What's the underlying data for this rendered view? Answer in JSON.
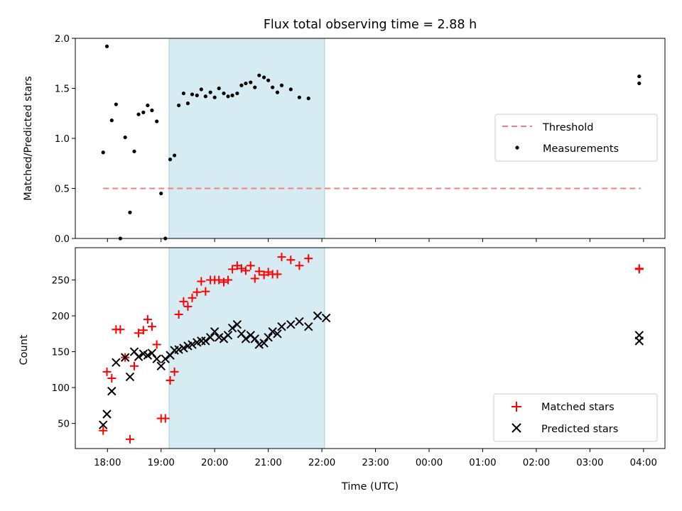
{
  "chart_data": [
    {
      "type": "scatter",
      "title": "Flux total observing time = 2.88 h",
      "xlabel": "",
      "ylabel": "Matched/Predicted stars",
      "x_unit": "hours after 18:00 UTC",
      "xlim": [
        -0.6,
        10.4
      ],
      "ylim": [
        0,
        2.0
      ],
      "yticks": [
        "0.0",
        "0.5",
        "1.0",
        "1.5",
        "2.0"
      ],
      "shaded_interval": [
        19.15,
        22.05
      ],
      "legend": {
        "placement": "center-right",
        "entries": [
          "Threshold",
          "Measurements"
        ]
      },
      "threshold": {
        "name": "Threshold",
        "value": 0.5,
        "x_range": [
          17.92,
          27.95
        ],
        "color": "#f08080"
      },
      "series": [
        {
          "name": "Measurements",
          "color": "#000000",
          "x": [
            17.92,
            17.99,
            18.08,
            18.16,
            18.24,
            18.33,
            18.42,
            18.5,
            18.58,
            18.67,
            18.75,
            18.83,
            18.92,
            19.0,
            19.08,
            19.17,
            19.25,
            19.33,
            19.42,
            19.5,
            19.58,
            19.67,
            19.75,
            19.83,
            19.92,
            20.0,
            20.08,
            20.17,
            20.25,
            20.33,
            20.42,
            20.5,
            20.58,
            20.67,
            20.75,
            20.83,
            20.92,
            21.0,
            21.08,
            21.17,
            21.25,
            21.42,
            21.58,
            21.75,
            27.92,
            27.92
          ],
          "y": [
            0.86,
            1.92,
            1.18,
            1.34,
            0.0,
            1.01,
            0.26,
            0.87,
            1.24,
            1.26,
            1.33,
            1.28,
            1.17,
            0.45,
            0.0,
            0.79,
            0.83,
            1.33,
            1.45,
            1.35,
            1.44,
            1.43,
            1.49,
            1.42,
            1.46,
            1.41,
            1.5,
            1.45,
            1.42,
            1.43,
            1.45,
            1.53,
            1.55,
            1.56,
            1.51,
            1.63,
            1.61,
            1.58,
            1.51,
            1.46,
            1.53,
            1.49,
            1.41,
            1.4,
            1.62,
            1.55
          ]
        }
      ]
    },
    {
      "type": "scatter",
      "title": "",
      "xlabel": "Time (UTC)",
      "ylabel": "Count",
      "xlim": [
        -0.6,
        10.4
      ],
      "ylim": [
        15,
        295
      ],
      "xticks": [
        "18:00",
        "19:00",
        "20:00",
        "21:00",
        "22:00",
        "23:00",
        "00:00",
        "01:00",
        "02:00",
        "03:00",
        "04:00"
      ],
      "yticks": [
        "50",
        "100",
        "150",
        "200",
        "250"
      ],
      "shaded_interval": [
        19.15,
        22.05
      ],
      "legend": {
        "placement": "bottom-right",
        "entries": [
          "Matched stars",
          "Predicted stars"
        ]
      },
      "series": [
        {
          "name": "Matched stars",
          "marker": "+",
          "color": "#ff0000",
          "x": [
            17.92,
            17.99,
            18.08,
            18.16,
            18.24,
            18.33,
            18.42,
            18.5,
            18.58,
            18.67,
            18.75,
            18.83,
            18.92,
            19.0,
            19.08,
            19.17,
            19.25,
            19.33,
            19.42,
            19.5,
            19.58,
            19.67,
            19.75,
            19.83,
            19.92,
            20.0,
            20.08,
            20.17,
            20.25,
            20.33,
            20.42,
            20.5,
            20.58,
            20.67,
            20.75,
            20.83,
            20.92,
            21.0,
            21.08,
            21.17,
            21.25,
            21.42,
            21.58,
            21.75,
            27.92,
            27.92
          ],
          "y": [
            40,
            122,
            113,
            181,
            181,
            142,
            28,
            130,
            176,
            180,
            195,
            185,
            160,
            57,
            57,
            110,
            122,
            202,
            220,
            213,
            225,
            233,
            248,
            234,
            250,
            250,
            250,
            247,
            250,
            265,
            270,
            266,
            263,
            270,
            252,
            262,
            257,
            261,
            258,
            258,
            282,
            278,
            270,
            280,
            266,
            265
          ]
        },
        {
          "name": "Predicted stars",
          "marker": "x",
          "color": "#000000",
          "x": [
            17.92,
            17.99,
            18.08,
            18.16,
            18.33,
            18.42,
            18.5,
            18.58,
            18.67,
            18.75,
            18.83,
            18.92,
            19.0,
            19.08,
            19.17,
            19.25,
            19.33,
            19.42,
            19.5,
            19.58,
            19.67,
            19.75,
            19.83,
            19.92,
            20.0,
            20.08,
            20.17,
            20.25,
            20.33,
            20.42,
            20.5,
            20.58,
            20.67,
            20.75,
            20.83,
            20.92,
            21.0,
            21.08,
            21.17,
            21.25,
            21.42,
            21.58,
            21.75,
            21.92,
            22.08,
            27.92,
            27.92
          ],
          "y": [
            48,
            63,
            95,
            135,
            142,
            115,
            150,
            143,
            147,
            145,
            148,
            140,
            130,
            140,
            145,
            152,
            153,
            155,
            158,
            160,
            163,
            165,
            165,
            170,
            178,
            170,
            168,
            173,
            183,
            188,
            175,
            168,
            173,
            168,
            160,
            162,
            170,
            178,
            175,
            185,
            188,
            192,
            185,
            200,
            197,
            173,
            165
          ]
        }
      ]
    }
  ]
}
